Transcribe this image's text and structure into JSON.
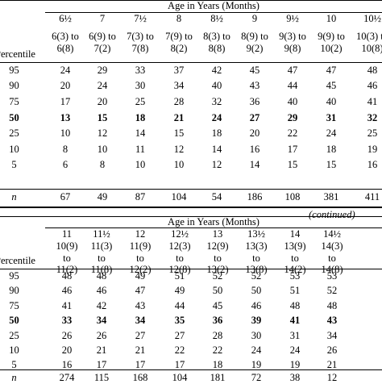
{
  "table1": {
    "heading": "Age in Years (Months)",
    "stub_header": "Percentile",
    "ages": [
      "6½",
      "7",
      "7½",
      "8",
      "8½",
      "9",
      "9½",
      "10",
      "10½"
    ],
    "ranges_top": [
      "6(3) to",
      "6(9) to",
      "7(3) to",
      "7(9) to",
      "8(3) to",
      "8(9) to",
      "9(3) to",
      "9(9) to",
      "10(3) to"
    ],
    "ranges_bottom": [
      "6(8)",
      "7(2)",
      "7(8)",
      "8(2)",
      "8(8)",
      "9(2)",
      "9(8)",
      "10(2)",
      "10(8)"
    ],
    "rows": [
      {
        "p": "95",
        "v": [
          "24",
          "29",
          "33",
          "37",
          "42",
          "45",
          "47",
          "47",
          "48"
        ]
      },
      {
        "p": "90",
        "v": [
          "20",
          "24",
          "30",
          "34",
          "40",
          "43",
          "44",
          "45",
          "46"
        ]
      },
      {
        "p": "75",
        "v": [
          "17",
          "20",
          "25",
          "28",
          "32",
          "36",
          "40",
          "40",
          "41"
        ]
      },
      {
        "p": "50",
        "v": [
          "13",
          "15",
          "18",
          "21",
          "24",
          "27",
          "29",
          "31",
          "32"
        ]
      },
      {
        "p": "25",
        "v": [
          "10",
          "12",
          "14",
          "15",
          "18",
          "20",
          "22",
          "24",
          "25"
        ]
      },
      {
        "p": "10",
        "v": [
          "8",
          "10",
          "11",
          "12",
          "14",
          "16",
          "17",
          "18",
          "19"
        ]
      },
      {
        "p": "5",
        "v": [
          "6",
          "8",
          "10",
          "10",
          "12",
          "14",
          "15",
          "15",
          "16"
        ]
      }
    ],
    "n_label": "n",
    "n_values": [
      "67",
      "49",
      "87",
      "104",
      "54",
      "186",
      "108",
      "381",
      "411"
    ]
  },
  "continued_label": "(continued)",
  "table2": {
    "heading": "Age in Years (Months)",
    "stub_header": "Percentile",
    "ages": [
      "11",
      "11½",
      "12",
      "12½",
      "13",
      "13½",
      "14",
      "14½"
    ],
    "ranges_1": [
      "10(9)",
      "11(3)",
      "11(9)",
      "12(3)",
      "12(9)",
      "13(3)",
      "13(9)",
      "14(3)"
    ],
    "ranges_2": [
      "to",
      "to",
      "to",
      "to",
      "to",
      "to",
      "to",
      "to"
    ],
    "ranges_3": [
      "11(2)",
      "11(8)",
      "12(2)",
      "12(8)",
      "13(2)",
      "13(8)",
      "14(2)",
      "14(8)"
    ],
    "rows": [
      {
        "p": "95",
        "v": [
          "48",
          "48",
          "49",
          "51",
          "52",
          "52",
          "53",
          "53"
        ]
      },
      {
        "p": "90",
        "v": [
          "46",
          "46",
          "47",
          "49",
          "50",
          "50",
          "51",
          "52"
        ]
      },
      {
        "p": "75",
        "v": [
          "41",
          "42",
          "43",
          "44",
          "45",
          "46",
          "48",
          "48"
        ]
      },
      {
        "p": "50",
        "v": [
          "33",
          "34",
          "34",
          "35",
          "36",
          "39",
          "41",
          "43"
        ]
      },
      {
        "p": "25",
        "v": [
          "26",
          "26",
          "27",
          "27",
          "28",
          "30",
          "31",
          "34"
        ]
      },
      {
        "p": "10",
        "v": [
          "20",
          "21",
          "21",
          "22",
          "22",
          "24",
          "24",
          "26"
        ]
      },
      {
        "p": "5",
        "v": [
          "16",
          "17",
          "17",
          "17",
          "18",
          "19",
          "19",
          "21"
        ]
      }
    ],
    "n_label": "n",
    "n_values": [
      "274",
      "115",
      "168",
      "104",
      "181",
      "72",
      "38",
      "12"
    ]
  }
}
